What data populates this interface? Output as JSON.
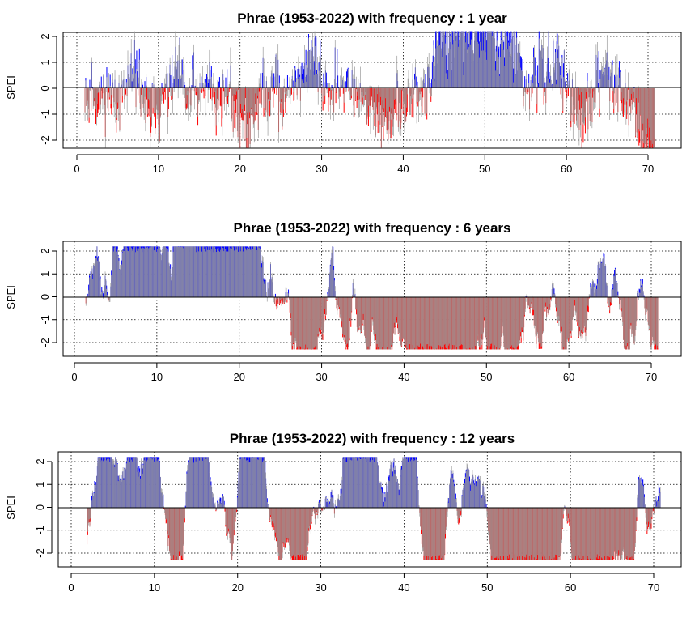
{
  "chart_data": [
    {
      "type": "bar",
      "title": "Phrae (1953-2022) with frequency : 1 year",
      "ylabel": "SPEI",
      "xlabel": "",
      "xlim": [
        0,
        71
      ],
      "ylim": [
        -2.3,
        2.3
      ],
      "x_ticks": [
        "0",
        "10",
        "20",
        "30",
        "40",
        "50",
        "60",
        "70"
      ],
      "y_ticks": [
        "-2",
        "-1",
        "0",
        "1",
        "2"
      ],
      "grid": "dotted",
      "colors": {
        "positive": "#0000ff",
        "negative": "#ff0000",
        "raw": "#999999"
      },
      "series_note_values": {
        "x_start": 1.0,
        "x_step": 0.0833,
        "smooth_window": 1,
        "amplitude": 1.0,
        "seed": 11
      }
    },
    {
      "type": "bar",
      "title": "Phrae (1953-2022) with frequency : 6 years",
      "ylabel": "SPEI",
      "xlabel": "",
      "xlim": [
        0,
        71
      ],
      "ylim": [
        -2.3,
        2.3
      ],
      "x_ticks": [
        "0",
        "10",
        "20",
        "30",
        "40",
        "50",
        "60",
        "70"
      ],
      "y_ticks": [
        "-2",
        "-1",
        "0",
        "1",
        "2"
      ],
      "grid": "dotted",
      "colors": {
        "positive": "#0000ff",
        "negative": "#ff0000",
        "raw": "#999999"
      },
      "series_note_values": {
        "x_start": 1.4,
        "x_step": 0.0833,
        "smooth_window": 6,
        "amplitude": 1.05,
        "seed": 23
      }
    },
    {
      "type": "bar",
      "title": "Phrae (1953-2022) with frequency : 12 years",
      "ylabel": "SPEI",
      "xlabel": "",
      "xlim": [
        0,
        71
      ],
      "ylim": [
        -2.3,
        2.3
      ],
      "x_ticks": [
        "0",
        "10",
        "20",
        "30",
        "40",
        "50",
        "60",
        "70"
      ],
      "y_ticks": [
        "-2",
        "-1",
        "0",
        "1",
        "2"
      ],
      "grid": "dotted",
      "colors": {
        "positive": "#0000ff",
        "negative": "#ff0000",
        "raw": "#999999"
      },
      "series_note_values": {
        "x_start": 1.9,
        "x_step": 0.0833,
        "smooth_window": 12,
        "amplitude": 1.1,
        "seed": 37
      }
    }
  ]
}
